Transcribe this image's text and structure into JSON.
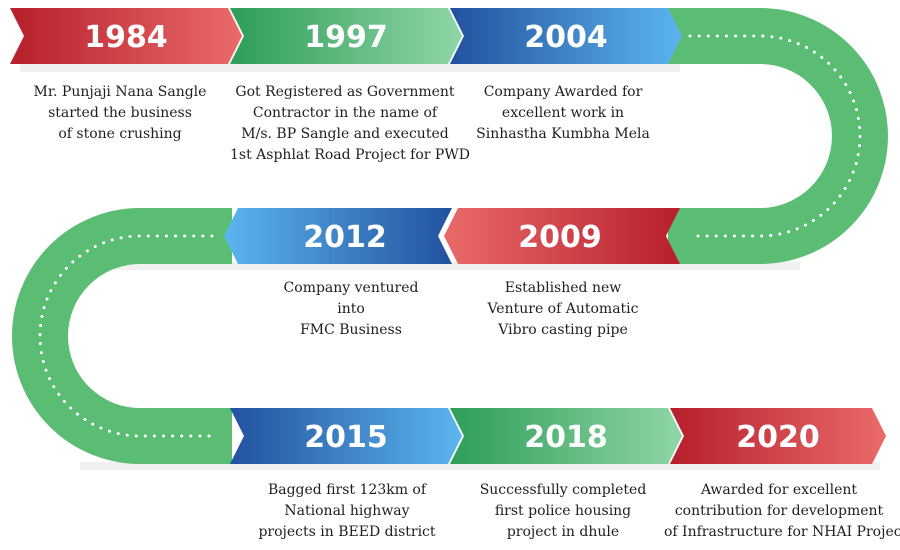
{
  "colors": {
    "red": "#c62b33",
    "green": "#3fae6a",
    "blue": "#2a66b6",
    "road": "#5bbd74"
  },
  "milestones": [
    {
      "year": "1984",
      "color": "red",
      "lines": [
        "Mr. Punjaji Nana Sangle",
        "started the business",
        "of stone crushing"
      ]
    },
    {
      "year": "1997",
      "color": "green",
      "lines": [
        "Got Registered as Government",
        "Contractor in the name of",
        "M/s. BP Sangle and executed",
        "1st Asphlat Road Project for PWD"
      ]
    },
    {
      "year": "2004",
      "color": "blue",
      "lines": [
        "Company Awarded for",
        "excellent work in",
        "Sinhastha Kumbha Mela"
      ]
    },
    {
      "year": "2009",
      "color": "red",
      "lines": [
        "Established new",
        "Venture of Automatic",
        "Vibro casting pipe"
      ]
    },
    {
      "year": "2012",
      "color": "blue",
      "lines": [
        "Company ventured",
        "into",
        "FMC Business"
      ]
    },
    {
      "year": "2015",
      "color": "blue",
      "lines": [
        "Bagged first 123km of",
        "National highway",
        "projects in BEED district"
      ]
    },
    {
      "year": "2018",
      "color": "green",
      "lines": [
        "Successfully completed",
        "first police housing",
        "project in dhule"
      ]
    },
    {
      "year": "2020",
      "color": "red",
      "lines": [
        "Awarded for excellent",
        "contribution for development",
        "of Infrastructure for NHAI Project"
      ]
    }
  ]
}
